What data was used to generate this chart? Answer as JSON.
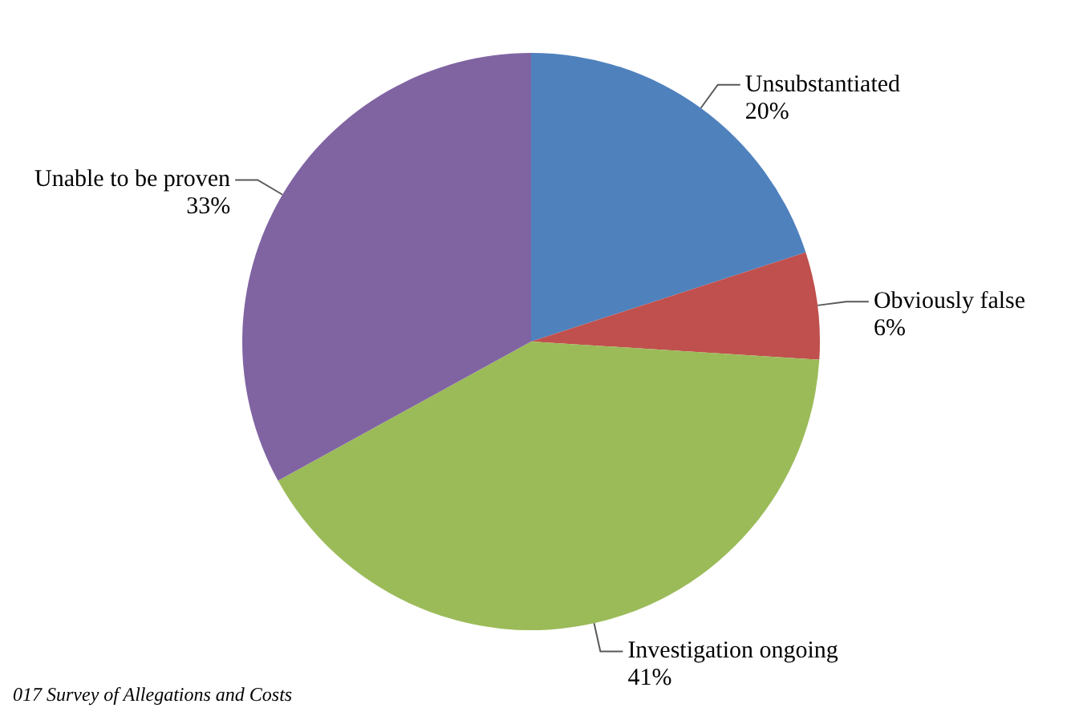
{
  "chart_data": {
    "type": "pie",
    "categories": [
      "Unsubstantiated",
      "Obviously false",
      "Investigation ongoing",
      "Unable to be proven"
    ],
    "values": [
      20,
      6,
      41,
      33
    ],
    "value_labels": [
      "20%",
      "6%",
      "41%",
      "33%"
    ],
    "colors": [
      "#4f81bd",
      "#c0504d",
      "#9bbb59",
      "#8064a2"
    ],
    "legend": false,
    "annotations": [
      "017 Survey of Allegations and Costs"
    ]
  }
}
